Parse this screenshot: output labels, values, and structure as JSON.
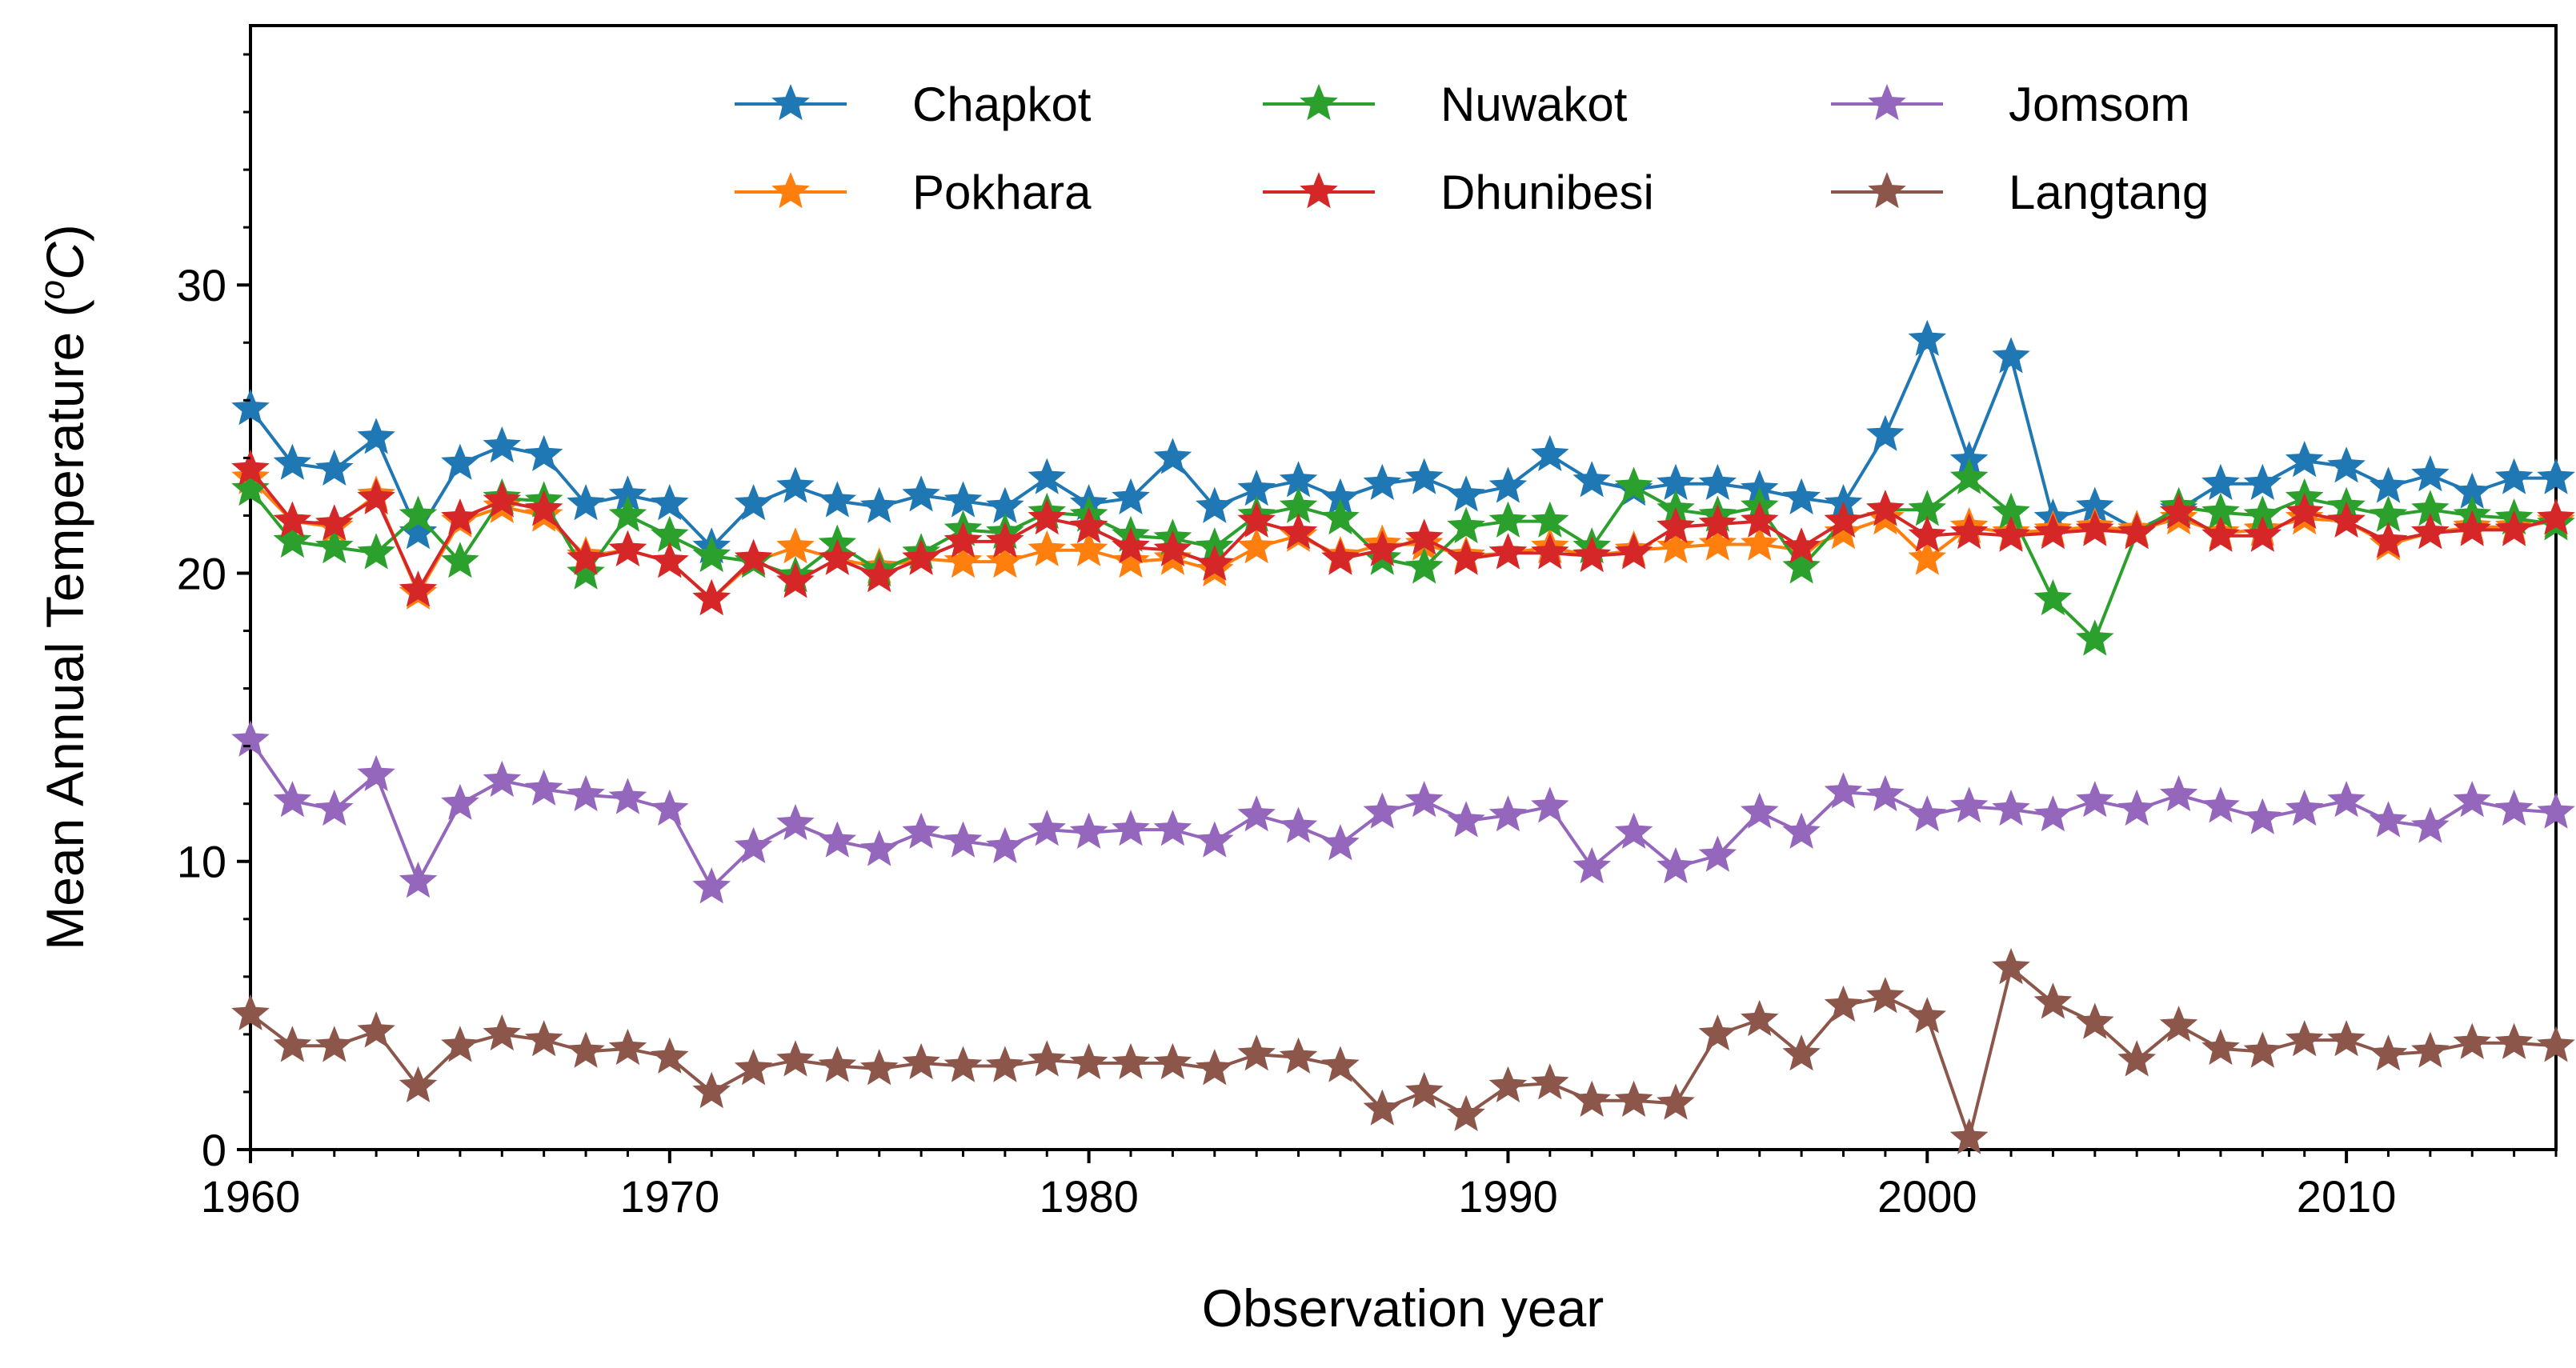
{
  "chart_data": {
    "type": "line",
    "title": "",
    "xlabel": "Observation year",
    "ylabel_text": "Mean Annual Temperature (",
    "ylabel_sup": "o",
    "ylabel_unit": "C",
    "ylabel_close": ")",
    "xlim": [
      1960,
      2015
    ],
    "ylim": [
      0,
      39
    ],
    "x_ticks": [
      1960,
      1970,
      1980,
      1990,
      2000,
      2010
    ],
    "x_tick_labels": [
      "1960",
      "1970",
      "1980",
      "1990",
      "2000",
      "2010"
    ],
    "y_ticks": [
      0,
      10,
      20,
      30
    ],
    "y_tick_labels": [
      "0",
      "10",
      "20",
      "30"
    ],
    "grid": false,
    "legend_position": "top-center",
    "x": [
      1960,
      1961,
      1962,
      1963,
      1964,
      1965,
      1966,
      1967,
      1968,
      1969,
      1970,
      1971,
      1972,
      1973,
      1974,
      1975,
      1976,
      1977,
      1978,
      1979,
      1980,
      1981,
      1982,
      1983,
      1984,
      1985,
      1986,
      1987,
      1988,
      1989,
      1990,
      1991,
      1992,
      1993,
      1994,
      1995,
      1996,
      1997,
      1998,
      1999,
      2000,
      2001,
      2002,
      2003,
      2004,
      2005,
      2006,
      2007,
      2008,
      2009,
      2010,
      2011,
      2012,
      2013,
      2014,
      2015
    ],
    "series": [
      {
        "name": "Chapkot",
        "color": "#1f77b4",
        "values": [
          25.7,
          23.8,
          23.6,
          24.7,
          21.4,
          23.8,
          24.4,
          24.1,
          22.4,
          22.7,
          22.4,
          20.9,
          22.4,
          23.0,
          22.5,
          22.3,
          22.7,
          22.5,
          22.3,
          23.3,
          22.4,
          22.6,
          24.0,
          22.3,
          22.9,
          23.2,
          22.6,
          23.1,
          23.3,
          22.7,
          23.0,
          24.1,
          23.2,
          22.9,
          23.1,
          23.1,
          22.9,
          22.6,
          22.4,
          24.8,
          28.1,
          23.9,
          27.5,
          21.9,
          22.3,
          21.5,
          22.2,
          23.1,
          23.1,
          23.9,
          23.7,
          23.0,
          23.4,
          22.8,
          23.3,
          23.3
        ]
      },
      {
        "name": "Pokhara",
        "color": "#ff7f0e",
        "values": [
          23.3,
          21.8,
          21.6,
          22.7,
          19.3,
          21.8,
          22.3,
          22.0,
          20.6,
          20.8,
          20.4,
          19.1,
          20.4,
          20.9,
          20.5,
          20.2,
          20.5,
          20.4,
          20.4,
          20.8,
          20.8,
          20.4,
          20.5,
          20.1,
          20.9,
          21.3,
          20.6,
          21.0,
          21.0,
          20.6,
          20.7,
          20.9,
          20.6,
          20.8,
          20.9,
          21.0,
          21.0,
          20.8,
          21.4,
          21.9,
          20.5,
          21.6,
          21.4,
          21.5,
          21.6,
          21.5,
          21.9,
          21.4,
          21.5,
          21.9,
          21.8,
          21.0,
          21.4,
          21.6,
          21.6,
          21.8
        ]
      },
      {
        "name": "Nuwakot",
        "color": "#2ca02c",
        "values": [
          22.9,
          21.1,
          20.9,
          20.7,
          22.0,
          20.4,
          22.6,
          22.5,
          20.0,
          22.0,
          21.3,
          20.6,
          20.4,
          19.9,
          21.0,
          20.1,
          20.7,
          21.5,
          21.4,
          22.1,
          22.0,
          21.3,
          21.2,
          20.9,
          22.0,
          22.3,
          21.9,
          20.5,
          20.2,
          21.6,
          21.8,
          21.8,
          20.9,
          23.0,
          22.2,
          22.0,
          22.3,
          20.2,
          21.8,
          22.2,
          22.2,
          23.3,
          22.1,
          19.1,
          17.7,
          21.4,
          22.3,
          22.1,
          22.0,
          22.6,
          22.3,
          22.0,
          22.2,
          22.0,
          21.9,
          21.7
        ]
      },
      {
        "name": "Dhunibesi",
        "color": "#d62728",
        "values": [
          23.6,
          21.8,
          21.7,
          22.6,
          19.4,
          21.9,
          22.5,
          22.2,
          20.5,
          20.8,
          20.4,
          19.1,
          20.5,
          19.7,
          20.5,
          19.9,
          20.5,
          21.1,
          21.1,
          21.9,
          21.6,
          20.9,
          20.8,
          20.3,
          21.8,
          21.4,
          20.5,
          20.8,
          21.2,
          20.5,
          20.7,
          20.7,
          20.6,
          20.7,
          21.6,
          21.7,
          21.8,
          20.9,
          21.8,
          22.2,
          21.3,
          21.4,
          21.3,
          21.4,
          21.5,
          21.4,
          22.1,
          21.3,
          21.3,
          22.1,
          21.8,
          21.1,
          21.4,
          21.5,
          21.5,
          21.9
        ]
      },
      {
        "name": "Jomsom",
        "color": "#9467bd",
        "values": [
          14.2,
          12.1,
          11.8,
          13.0,
          9.3,
          12.0,
          12.8,
          12.5,
          12.3,
          12.2,
          11.8,
          9.1,
          10.5,
          11.3,
          10.7,
          10.4,
          11.0,
          10.7,
          10.5,
          11.1,
          11.0,
          11.1,
          11.1,
          10.7,
          11.6,
          11.2,
          10.6,
          11.7,
          12.1,
          11.4,
          11.6,
          11.9,
          9.8,
          11.0,
          9.8,
          10.2,
          11.7,
          11.0,
          12.4,
          12.3,
          11.6,
          11.9,
          11.8,
          11.6,
          12.1,
          11.8,
          12.3,
          11.9,
          11.5,
          11.8,
          12.1,
          11.4,
          11.2,
          12.1,
          11.8,
          11.7
        ]
      },
      {
        "name": "Langtang",
        "color": "#8c564b",
        "values": [
          4.7,
          3.6,
          3.6,
          4.1,
          2.2,
          3.6,
          4.0,
          3.8,
          3.4,
          3.5,
          3.2,
          2.0,
          2.8,
          3.1,
          2.9,
          2.8,
          3.0,
          2.9,
          2.9,
          3.1,
          3.0,
          3.0,
          3.0,
          2.8,
          3.3,
          3.2,
          2.9,
          1.4,
          2.0,
          1.2,
          2.2,
          2.3,
          1.7,
          1.7,
          1.6,
          4.0,
          4.5,
          3.3,
          5.0,
          5.3,
          4.6,
          0.4,
          6.3,
          5.1,
          4.4,
          3.1,
          4.3,
          3.5,
          3.4,
          3.8,
          3.8,
          3.3,
          3.4,
          3.7,
          3.7,
          3.6
        ]
      }
    ]
  }
}
